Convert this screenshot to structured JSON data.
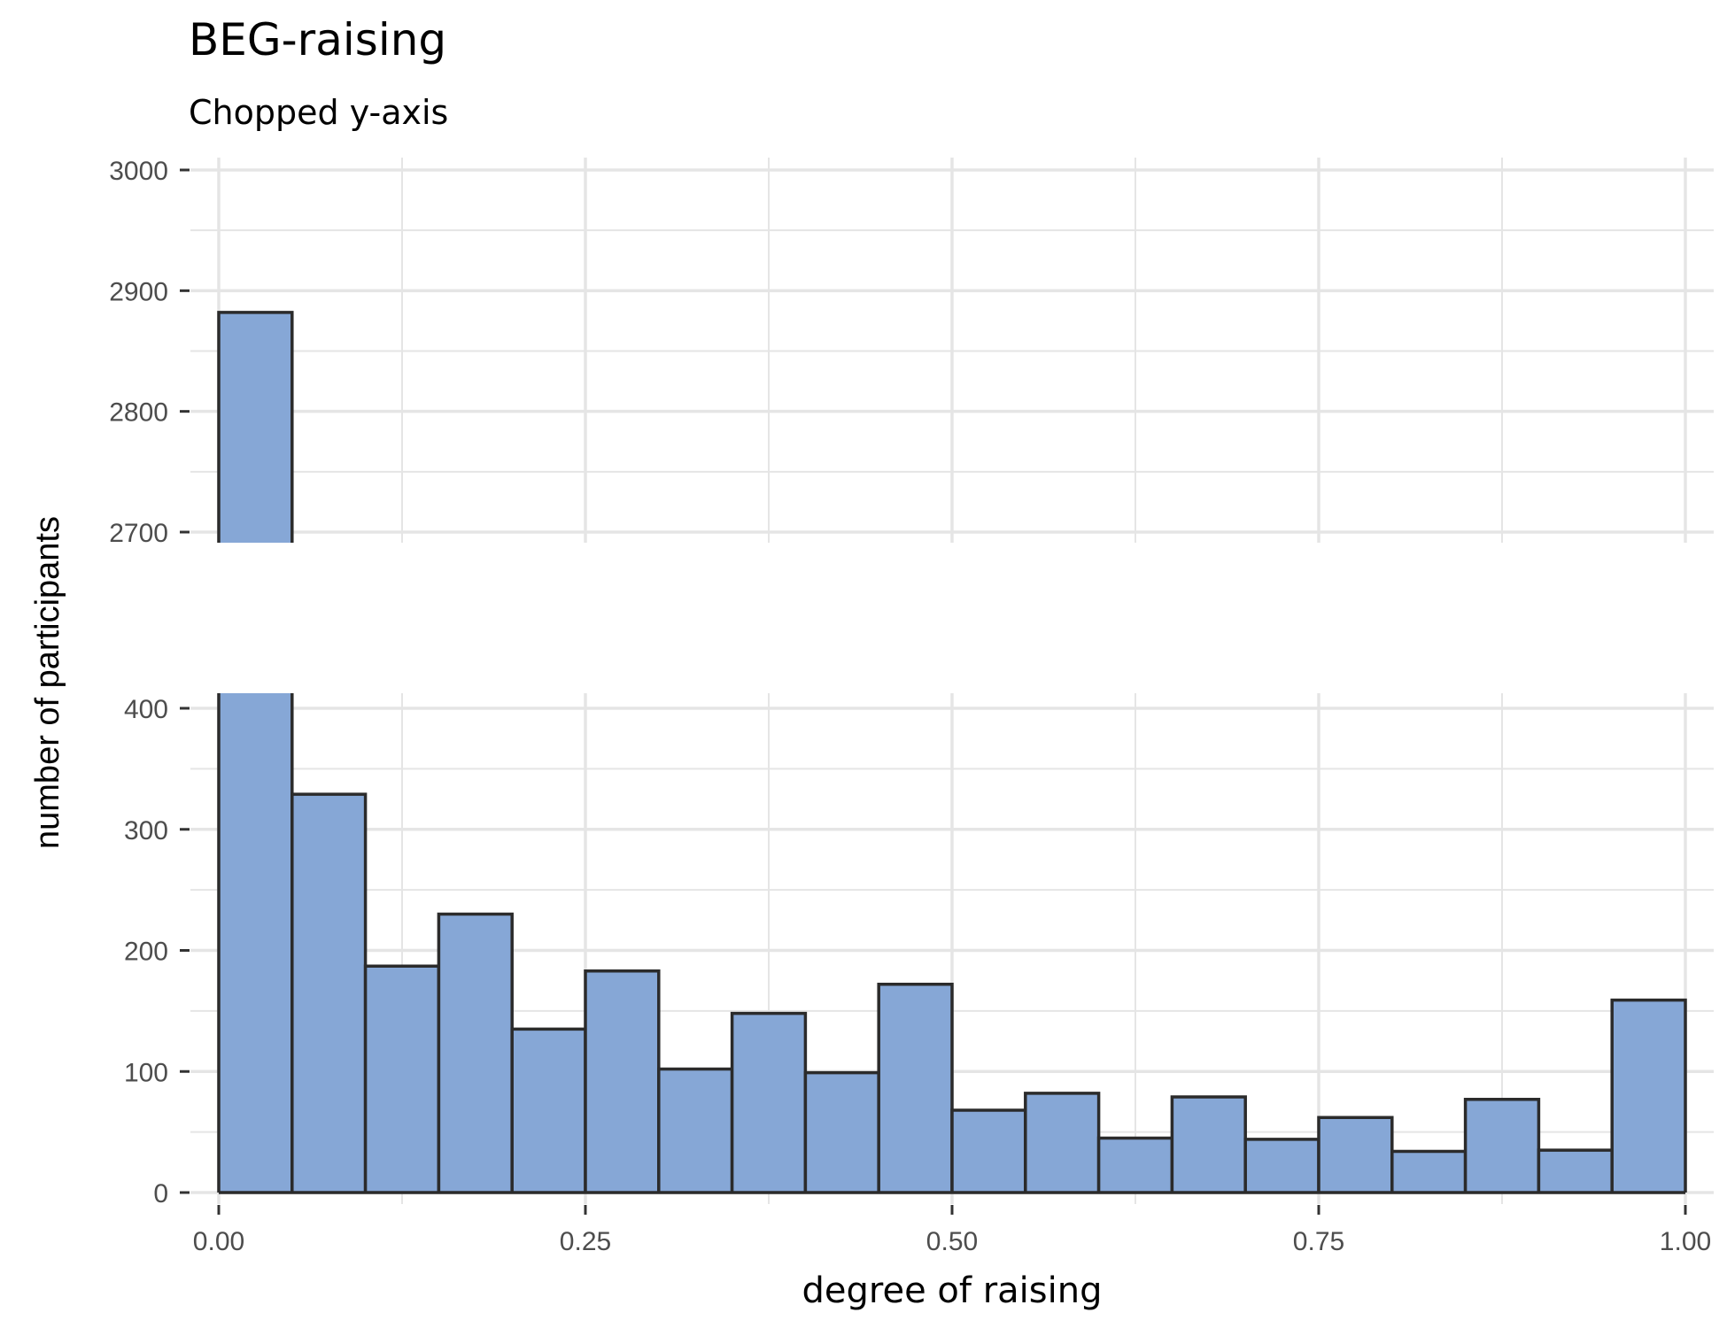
{
  "chart_data": {
    "type": "bar",
    "title": "BEG-raising",
    "subtitle": "Chopped y-axis",
    "xlabel": "degree of raising",
    "ylabel": "number of participants",
    "xlim": [
      0,
      1
    ],
    "x_ticks": [
      "0.00",
      "0.25",
      "0.50",
      "0.75",
      "1.00"
    ],
    "bin_width": 0.05,
    "bins_start": [
      0.0,
      0.05,
      0.1,
      0.15,
      0.2,
      0.25,
      0.3,
      0.35,
      0.4,
      0.45,
      0.5,
      0.55,
      0.6,
      0.65,
      0.7,
      0.75,
      0.8,
      0.85,
      0.9,
      0.95
    ],
    "values": [
      2882,
      329,
      187,
      230,
      135,
      183,
      102,
      148,
      99,
      172,
      68,
      82,
      45,
      79,
      44,
      62,
      34,
      77,
      35,
      159
    ],
    "y_segments": [
      {
        "range": [
          2700,
          3000
        ],
        "ticks": [
          "2700",
          "2800",
          "2900",
          "3000"
        ]
      },
      {
        "range": [
          0,
          400
        ],
        "ticks": [
          "0",
          "100",
          "200",
          "300",
          "400"
        ]
      }
    ],
    "grid": true,
    "colors": {
      "fill": "#86a7d6",
      "edge": "#2b2b2b",
      "grid": "#e5e5e5",
      "axis": "#333333"
    }
  }
}
